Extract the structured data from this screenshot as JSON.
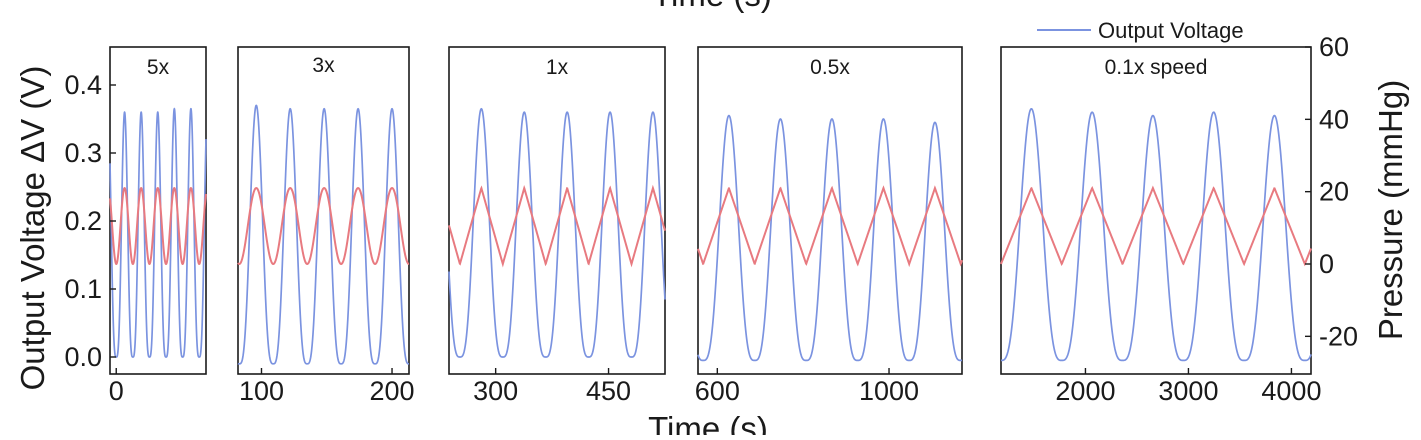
{
  "chart_data": {
    "type": "line",
    "title": "",
    "top_axis_title": "Time (s)",
    "xlabel": "Time (s)",
    "ylabel": "Output Voltage ΔV (V)",
    "y2label": "Pressure (mmHg)",
    "ylim": [
      -0.02,
      0.45
    ],
    "y2lim": [
      -30,
      60
    ],
    "yticks": [
      0.0,
      0.1,
      0.2,
      0.3,
      0.4
    ],
    "yticks_labels": [
      "0.0",
      "0.1",
      "0.2",
      "0.3",
      "0.4"
    ],
    "y2ticks": [
      -20,
      0,
      20,
      40,
      60
    ],
    "y2ticks_labels": [
      "-20",
      "0",
      "20",
      "40",
      "60"
    ],
    "legend": {
      "position": "top-right",
      "entries": [
        {
          "label": "Output Voltage",
          "color": "#7b93e0"
        }
      ]
    },
    "colors": {
      "voltage": "#7b93e0",
      "pressure": "#e87a80",
      "axis": "#1a1a1a"
    },
    "panels": [
      {
        "label": "5x",
        "xlim": [
          -5,
          72
        ],
        "xticks": [
          0
        ],
        "xticks_labels": [
          "0"
        ],
        "period": 13.3,
        "cycles": 5,
        "peak_times": [
          6.7,
          20.0,
          33.3,
          46.6,
          59.9
        ],
        "voltage_peaks": [
          0.36,
          0.36,
          0.36,
          0.365,
          0.365
        ],
        "voltage_min": 0.0,
        "pressure_min": 0,
        "pressure_max": 21,
        "pressure_shape": "smooth"
      },
      {
        "label": "3x",
        "xlim": [
          82,
          213
        ],
        "xticks": [
          100,
          200
        ],
        "xticks_labels": [
          "100",
          "200"
        ],
        "period": 26,
        "cycles": 5,
        "peak_times": [
          96,
          122,
          148,
          174,
          200
        ],
        "voltage_peaks": [
          0.37,
          0.365,
          0.365,
          0.365,
          0.365
        ],
        "voltage_min": -0.01,
        "pressure_min": 0,
        "pressure_max": 21,
        "pressure_shape": "smooth"
      },
      {
        "label": "1x",
        "xlim": [
          238,
          525
        ],
        "xticks": [
          300,
          450
        ],
        "xticks_labels": [
          "300",
          "450"
        ],
        "period": 57,
        "cycles": 5,
        "peak_times": [
          281,
          338,
          395,
          452,
          509
        ],
        "voltage_peaks": [
          0.365,
          0.36,
          0.36,
          0.36,
          0.36
        ],
        "voltage_min": 0.0,
        "pressure_min": 0,
        "pressure_max": 21,
        "pressure_shape": "linear"
      },
      {
        "label": "0.5x",
        "xlim": [
          555,
          1170
        ],
        "xticks": [
          600,
          1000
        ],
        "xticks_labels": [
          "600",
          "1000"
        ],
        "period": 120,
        "cycles": 5,
        "peak_times": [
          627,
          747,
          867,
          987,
          1107
        ],
        "voltage_peaks": [
          0.355,
          0.35,
          0.35,
          0.35,
          0.345
        ],
        "voltage_min": -0.005,
        "pressure_min": 0,
        "pressure_max": 21,
        "pressure_shape": "linear"
      },
      {
        "label": "0.1x speed",
        "xlim": [
          1180,
          4190
        ],
        "xticks": [
          2000,
          3000,
          4000
        ],
        "xticks_labels": [
          "2000",
          "3000",
          "4000"
        ],
        "period": 590,
        "cycles": 5,
        "peak_times": [
          1475,
          2065,
          2655,
          3245,
          3835
        ],
        "voltage_peaks": [
          0.365,
          0.36,
          0.355,
          0.36,
          0.355
        ],
        "voltage_min": -0.005,
        "pressure_min": 0,
        "pressure_max": 21,
        "pressure_shape": "linear"
      }
    ]
  }
}
